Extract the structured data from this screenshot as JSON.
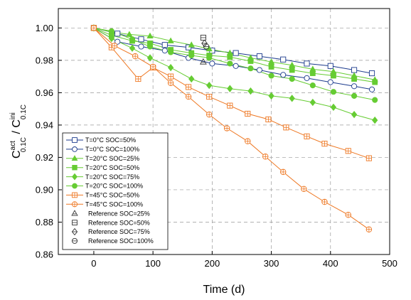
{
  "chart_data": {
    "type": "line",
    "xlabel": "Time (d)",
    "ylabel_main": "C",
    "ylabel_sup1": "act",
    "ylabel_sub1": "0.1C",
    "ylabel_sep": " / C",
    "ylabel_sup2": "ini",
    "ylabel_sub2": "0.1C",
    "xlim": [
      -60,
      500
    ],
    "ylim": [
      0.86,
      1.012
    ],
    "xticks": [
      "0",
      "100",
      "200",
      "300",
      "400",
      "500"
    ],
    "yticks": [
      "0.86",
      "0.88",
      "0.90",
      "0.92",
      "0.94",
      "0.96",
      "0.98",
      "1.00"
    ],
    "grid": true,
    "legend_position": "bottom-left",
    "series": [
      {
        "name": "T=0°C SOC=50%",
        "color": "#1b3a8c",
        "marker": "square-open",
        "x": [
          0,
          40,
          80,
          120,
          160,
          200,
          240,
          280,
          320,
          360,
          400,
          440,
          470
        ],
        "y": [
          1.0,
          0.9965,
          0.993,
          0.9895,
          0.988,
          0.986,
          0.9845,
          0.9825,
          0.9805,
          0.978,
          0.9765,
          0.974,
          0.972
        ]
      },
      {
        "name": "T=0°C SOC=100%",
        "color": "#1b3a8c",
        "marker": "circle-open",
        "x": [
          0,
          40,
          80,
          120,
          160,
          200,
          240,
          280,
          320,
          360,
          400,
          440,
          470
        ],
        "y": [
          1.0,
          0.9915,
          0.9885,
          0.986,
          0.9815,
          0.978,
          0.9765,
          0.974,
          0.971,
          0.969,
          0.9665,
          0.964,
          0.962
        ]
      },
      {
        "name": "T=20°C SOC=25%",
        "color": "#66cc33",
        "marker": "triangle",
        "x": [
          0,
          30,
          60,
          95,
          130,
          165,
          195,
          230,
          265,
          300,
          335,
          370,
          405,
          440,
          475
        ],
        "y": [
          1.0,
          0.9975,
          0.996,
          0.995,
          0.992,
          0.9895,
          0.987,
          0.9845,
          0.9815,
          0.979,
          0.977,
          0.9745,
          0.973,
          0.9705,
          0.968
        ]
      },
      {
        "name": "T=20°C SOC=50%",
        "color": "#66cc33",
        "marker": "square",
        "x": [
          0,
          30,
          65,
          95,
          130,
          165,
          195,
          230,
          265,
          300,
          335,
          370,
          405,
          440,
          475
        ],
        "y": [
          1.0,
          0.9955,
          0.992,
          0.9905,
          0.9865,
          0.9845,
          0.983,
          0.982,
          0.9795,
          0.976,
          0.974,
          0.972,
          0.9705,
          0.9685,
          0.9665
        ]
      },
      {
        "name": "T=20°C SOC=75%",
        "color": "#66cc33",
        "marker": "diamond",
        "x": [
          0,
          30,
          65,
          95,
          130,
          165,
          195,
          230,
          265,
          300,
          335,
          370,
          405,
          440,
          475
        ],
        "y": [
          1.0,
          0.9935,
          0.9875,
          0.9815,
          0.9755,
          0.9685,
          0.9645,
          0.9625,
          0.961,
          0.958,
          0.9565,
          0.954,
          0.951,
          0.9465,
          0.943
        ]
      },
      {
        "name": "T=20°C SOC=100%",
        "color": "#66cc33",
        "marker": "circle",
        "x": [
          0,
          30,
          65,
          95,
          130,
          165,
          195,
          230,
          265,
          300,
          335,
          370,
          405,
          440,
          475
        ],
        "y": [
          1.0,
          0.998,
          0.993,
          0.9885,
          0.985,
          0.983,
          0.9815,
          0.978,
          0.975,
          0.9705,
          0.9685,
          0.9645,
          0.9605,
          0.958,
          0.9555
        ]
      },
      {
        "name": "T=45°C SOC=50%",
        "color": "#ee7722",
        "marker": "square-dot",
        "x": [
          0,
          30,
          75,
          100,
          130,
          160,
          195,
          230,
          260,
          295,
          325,
          360,
          390,
          430,
          465
        ],
        "y": [
          1.0,
          0.988,
          0.9685,
          0.9755,
          0.97,
          0.9635,
          0.9575,
          0.952,
          0.947,
          0.9435,
          0.9385,
          0.933,
          0.9285,
          0.924,
          0.9195
        ]
      },
      {
        "name": "T=45°C SOC=100%",
        "color": "#ee7722",
        "marker": "circle-dot",
        "x": [
          0,
          35,
          70,
          100,
          130,
          160,
          195,
          225,
          260,
          290,
          320,
          355,
          390,
          430,
          465
        ],
        "y": [
          1.0,
          0.989,
          0.9825,
          0.976,
          0.966,
          0.9575,
          0.9465,
          0.938,
          0.93,
          0.9205,
          0.911,
          0.9005,
          0.8925,
          0.8845,
          0.8755
        ]
      },
      {
        "name": "Reference SOC=25%",
        "color": "#333333",
        "marker": "ref-triangle",
        "x": [
          185
        ],
        "y": [
          0.979
        ]
      },
      {
        "name": "Reference SOC=50%",
        "color": "#333333",
        "marker": "ref-square",
        "x": [
          185
        ],
        "y": [
          0.994
        ]
      },
      {
        "name": "Reference SOC=75%",
        "color": "#333333",
        "marker": "ref-diamond",
        "x": [
          187
        ],
        "y": [
          0.9905
        ]
      },
      {
        "name": "Reference SOC=100%",
        "color": "#333333",
        "marker": "ref-circle",
        "x": [
          190
        ],
        "y": [
          0.9885
        ]
      }
    ]
  }
}
